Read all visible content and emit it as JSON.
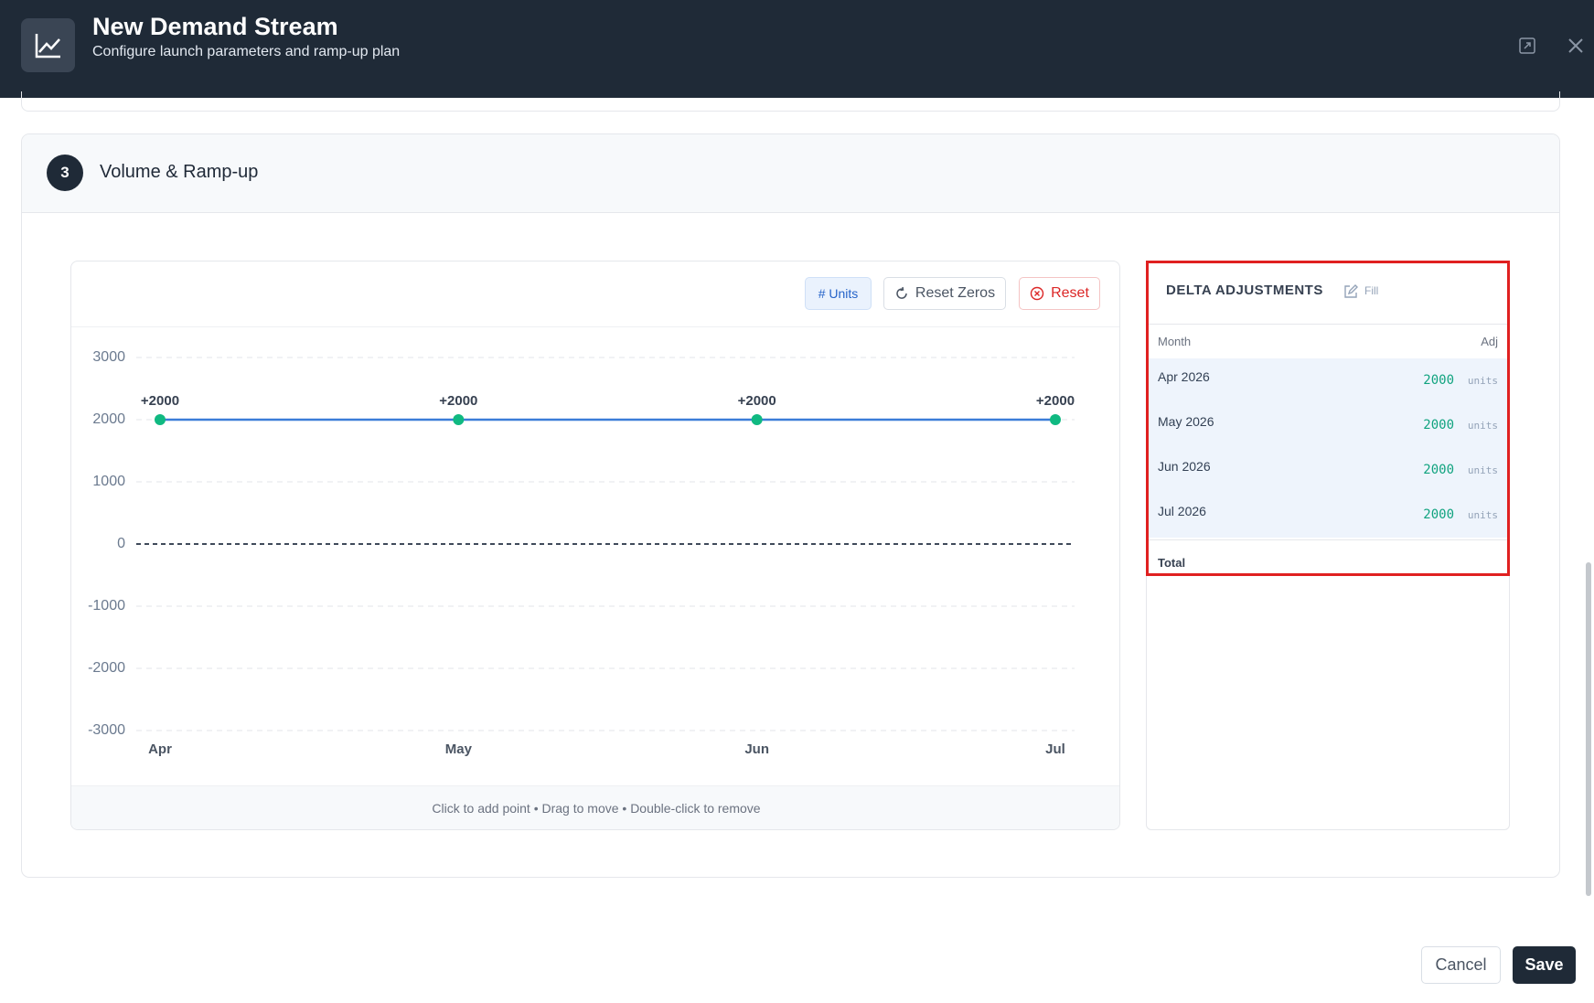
{
  "header": {
    "title": "New Demand Stream",
    "subtitle": "Configure launch parameters and ramp-up plan"
  },
  "section": {
    "number": "3",
    "title": "Volume & Ramp-up"
  },
  "toolbar": {
    "units": "# Units",
    "reset_zeros": "Reset Zeros",
    "reset": "Reset"
  },
  "chart_data": {
    "type": "line",
    "categories": [
      "Apr",
      "May",
      "Jun",
      "Jul"
    ],
    "series": [
      {
        "color": "#3b7dd8",
        "marker_color": "#10b981",
        "values": [
          2000,
          2000,
          2000,
          2000
        ],
        "value_labels": [
          "+2000",
          "+2000",
          "+2000",
          "+2000"
        ]
      }
    ],
    "ylim": [
      -3000,
      3000
    ],
    "yticks": [
      -3000,
      -2000,
      -1000,
      0,
      1000,
      2000,
      3000
    ],
    "grid": true
  },
  "hint": "Click to add point • Drag to move • Double-click to remove",
  "delta": {
    "title": "DELTA ADJUSTMENTS",
    "fill": "Fill",
    "columns": [
      "Month",
      "Adj"
    ],
    "rows": [
      [
        "Apr 2026",
        2000,
        "units"
      ],
      [
        "May 2026",
        2000,
        "units"
      ],
      [
        "Jun 2026",
        2000,
        "units"
      ],
      [
        "Jul 2026",
        2000,
        "units"
      ]
    ],
    "total": "Total"
  },
  "footer": {
    "cancel": "Cancel",
    "save": "Save"
  }
}
